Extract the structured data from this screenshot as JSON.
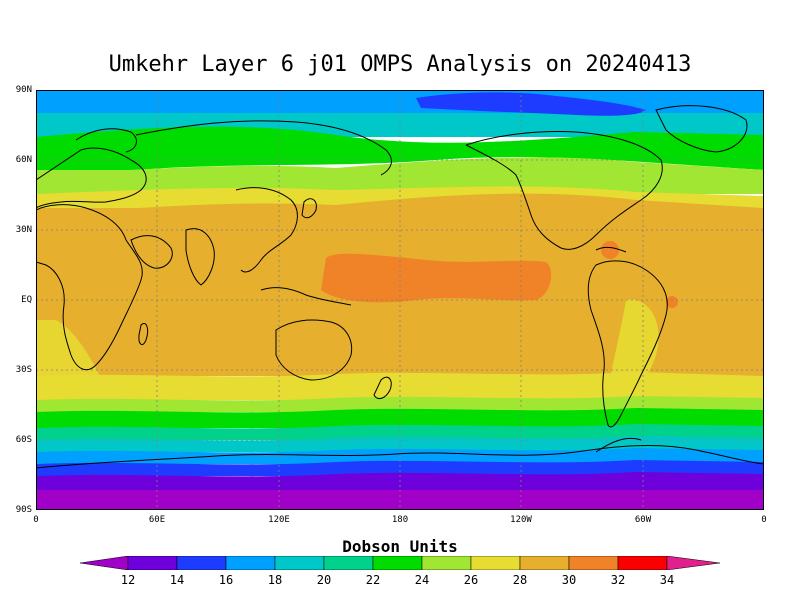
{
  "title": "Umkehr Layer 6 j01 OMPS Analysis on 20240413",
  "y_axis_labels": [
    "90N",
    "60N",
    "30N",
    "EQ",
    "30S",
    "60S",
    "90S"
  ],
  "x_axis_labels": [
    "0",
    "60E",
    "120E",
    "180",
    "120W",
    "60W",
    "0"
  ],
  "colorbar": {
    "units_label": "Dobson Units",
    "tick_labels": [
      "12",
      "14",
      "16",
      "18",
      "20",
      "22",
      "24",
      "26",
      "28",
      "30",
      "32",
      "34"
    ],
    "colors": [
      "#a000c8",
      "#6e00dc",
      "#1e3cff",
      "#00a0ff",
      "#00c8c8",
      "#00d28c",
      "#00dc00",
      "#a0e632",
      "#e6dc32",
      "#e6af2d",
      "#f08228",
      "#fa0000",
      "#e0208c"
    ]
  },
  "map_colors": {
    "band_90N_80N": "#00a0ff",
    "band_80N_70N": "#00c8c8",
    "band_70N_55N": "#00dc00",
    "band_55N_45N": "#a0e632",
    "band_45N_30N": "#e6dc32",
    "band_tropics": "#e6af2d",
    "band_core": "#f08228",
    "band_30S_40S": "#e6dc32",
    "band_40S_45S": "#a0e632",
    "band_45S_55S": "#00dc00",
    "band_55S_60S": "#00d28c",
    "band_60S_65S": "#00c8c8",
    "band_65S_70S": "#00a0ff",
    "band_70S_75S": "#1e3cff",
    "band_75S_80S": "#6e00dc",
    "band_80S_90S": "#a000c8",
    "arctic_low": "#1e3cff",
    "coast_line": "#000000",
    "grid_line": "#808080"
  }
}
